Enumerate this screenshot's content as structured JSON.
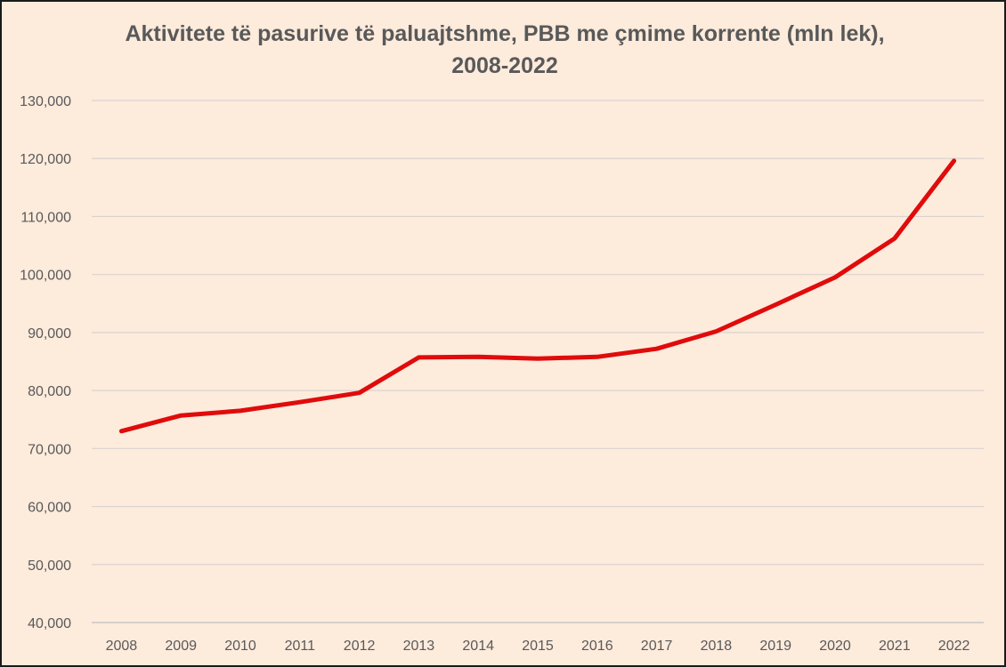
{
  "chart_data": {
    "type": "line",
    "title_line1": "Aktivitete të pasurive të paluajtshme, PBB me çmime korrente (mln lek),",
    "title_line2": "2008-2022",
    "xlabel": "",
    "ylabel": "",
    "ylim": [
      40000,
      130000
    ],
    "yticks": [
      40000,
      50000,
      60000,
      70000,
      80000,
      90000,
      100000,
      110000,
      120000,
      130000
    ],
    "ytick_labels": [
      "40,000",
      "50,000",
      "60,000",
      "70,000",
      "80,000",
      "90,000",
      "100,000",
      "110,000",
      "120,000",
      "130,000"
    ],
    "grid": true,
    "categories": [
      "2008",
      "2009",
      "2010",
      "2011",
      "2012",
      "2013",
      "2014",
      "2015",
      "2016",
      "2017",
      "2018",
      "2019",
      "2020",
      "2021",
      "2022"
    ],
    "series": [
      {
        "values": [
          73000,
          75700,
          76500,
          78000,
          79600,
          85700,
          85800,
          85500,
          85800,
          87200,
          90200,
          94800,
          99500,
          106200,
          119600
        ],
        "color": "#e00b0b"
      }
    ]
  }
}
